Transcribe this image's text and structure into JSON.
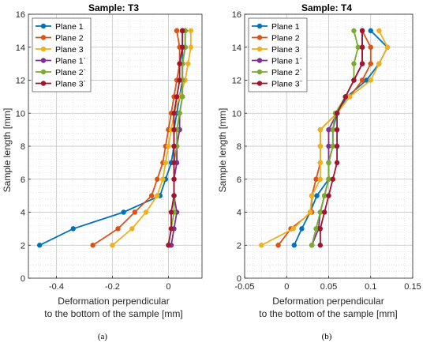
{
  "chart_data": [
    {
      "type": "line",
      "panel_label": "(a)",
      "title": "Sample: T3",
      "xlabel": "Deformation perpendicular",
      "xlabel2": "to the bottom of the sample [mm]",
      "ylabel": "Sample length [mm]",
      "xlim": [
        -0.5,
        0.12
      ],
      "ylim": [
        0,
        16
      ],
      "xticks": [
        -0.4,
        -0.2,
        0
      ],
      "xtick_labels": [
        "-0.4",
        "-0.2",
        "0"
      ],
      "yticks": [
        0,
        2,
        4,
        6,
        8,
        10,
        12,
        14,
        16
      ],
      "grid": true,
      "legend_position": "top-left",
      "series": [
        {
          "name": "Plane 1",
          "color": "#0072BD",
          "x": [
            -0.46,
            -0.34,
            -0.16,
            -0.03,
            -0.01,
            0.01,
            0.02,
            0.02,
            0.03,
            0.04,
            0.05,
            0.05,
            0.05,
            0.05,
            0.05
          ],
          "y": [
            2,
            3,
            4,
            5,
            6,
            7,
            8,
            9,
            10,
            11,
            12,
            13,
            14,
            15,
            15
          ]
        },
        {
          "name": "Plane 2",
          "color": "#D95319",
          "x": [
            -0.27,
            -0.18,
            -0.12,
            -0.06,
            -0.04,
            -0.02,
            -0.01,
            0.0,
            0.01,
            0.02,
            0.03,
            0.04,
            0.04,
            0.03,
            0.03
          ],
          "y": [
            2,
            3,
            4,
            5,
            6,
            7,
            8,
            9,
            10,
            11,
            12,
            13,
            14,
            15,
            15
          ]
        },
        {
          "name": "Plane 3",
          "color": "#EDB120",
          "x": [
            -0.2,
            -0.13,
            -0.08,
            -0.04,
            -0.02,
            -0.01,
            0.0,
            0.01,
            0.02,
            0.04,
            0.06,
            0.07,
            0.08,
            0.08,
            0.06
          ],
          "y": [
            2,
            3,
            4,
            5,
            6,
            7,
            8,
            9,
            10,
            11,
            12,
            13,
            14,
            15,
            15
          ]
        },
        {
          "name": "Plane 1`",
          "color": "#7E2F8E",
          "x": [
            0.01,
            0.02,
            0.03,
            0.02,
            0.02,
            0.03,
            0.03,
            0.04,
            0.04,
            0.05,
            0.05,
            0.05,
            0.06,
            0.06,
            0.05
          ],
          "y": [
            2,
            3,
            4,
            5,
            6,
            7,
            8,
            9,
            10,
            11,
            12,
            13,
            14,
            15,
            15
          ]
        },
        {
          "name": "Plane 2`",
          "color": "#77AC30",
          "x": [
            0.0,
            0.01,
            0.02,
            0.02,
            0.02,
            0.02,
            0.03,
            0.03,
            0.04,
            0.05,
            0.05,
            0.05,
            0.06,
            0.06,
            0.05
          ],
          "y": [
            2,
            3,
            4,
            5,
            6,
            7,
            8,
            9,
            10,
            11,
            12,
            13,
            14,
            15,
            15
          ]
        },
        {
          "name": "Plane 3`",
          "color": "#A2142F",
          "x": [
            0.0,
            0.01,
            0.01,
            0.02,
            0.02,
            0.02,
            0.02,
            0.02,
            0.02,
            0.03,
            0.04,
            0.04,
            0.05,
            0.05,
            0.05
          ],
          "y": [
            2,
            3,
            4,
            5,
            6,
            7,
            8,
            9,
            10,
            11,
            12,
            13,
            14,
            15,
            15
          ]
        }
      ]
    },
    {
      "type": "line",
      "panel_label": "(b)",
      "title": "Sample: T4",
      "xlabel": "Deformation perpendicular",
      "xlabel2": "to the bottom of the sample [mm]",
      "ylabel": "Sample length [mm]",
      "xlim": [
        -0.05,
        0.15
      ],
      "ylim": [
        0,
        16
      ],
      "xticks": [
        -0.05,
        0,
        0.05,
        0.1,
        0.15
      ],
      "xtick_labels": [
        "-0.05",
        "0",
        "0.05",
        "0.1",
        "0.15"
      ],
      "yticks": [
        0,
        2,
        4,
        6,
        8,
        10,
        12,
        14,
        16
      ],
      "grid": true,
      "legend_position": "top-left",
      "series": [
        {
          "name": "Plane 1",
          "color": "#0072BD",
          "x": [
            0.009,
            0.018,
            0.028,
            0.036,
            0.05,
            0.05,
            0.055,
            0.055,
            0.06,
            0.072,
            0.095,
            0.11,
            0.12,
            0.1
          ],
          "y": [
            2,
            3,
            4,
            5,
            6,
            7,
            8,
            9,
            10,
            11,
            12,
            13,
            14,
            15
          ]
        },
        {
          "name": "Plane 2",
          "color": "#D95319",
          "x": [
            -0.01,
            0.005,
            0.03,
            0.03,
            0.035,
            0.04,
            0.04,
            0.04,
            0.06,
            0.075,
            0.09,
            0.1,
            0.1,
            0.09
          ],
          "y": [
            2,
            3,
            4,
            5,
            6,
            7,
            8,
            9,
            10,
            11,
            12,
            13,
            14,
            15
          ]
        },
        {
          "name": "Plane 3",
          "color": "#EDB120",
          "x": [
            -0.03,
            0.008,
            0.028,
            0.03,
            0.04,
            0.04,
            0.04,
            0.04,
            0.06,
            0.075,
            0.1,
            0.11,
            0.12,
            0.11
          ],
          "y": [
            2,
            3,
            4,
            5,
            6,
            7,
            8,
            9,
            10,
            11,
            12,
            13,
            14,
            15
          ]
        },
        {
          "name": "Plane 1`",
          "color": "#7E2F8E",
          "x": [
            0.03,
            0.038,
            0.04,
            0.045,
            0.05,
            0.05,
            0.05,
            0.05,
            0.06,
            0.07,
            0.08,
            0.09,
            0.09,
            0.09
          ],
          "y": [
            2,
            3,
            4,
            5,
            6,
            7,
            8,
            9,
            10,
            11,
            12,
            13,
            14,
            15
          ]
        },
        {
          "name": "Plane 2`",
          "color": "#77AC30",
          "x": [
            0.03,
            0.035,
            0.04,
            0.045,
            0.05,
            0.05,
            0.055,
            0.055,
            0.058,
            0.07,
            0.08,
            0.08,
            0.085,
            0.08
          ],
          "y": [
            2,
            3,
            4,
            5,
            6,
            7,
            8,
            9,
            10,
            11,
            12,
            13,
            14,
            15
          ]
        },
        {
          "name": "Plane 3`",
          "color": "#A2142F",
          "x": [
            0.04,
            0.04,
            0.045,
            0.05,
            0.055,
            0.06,
            0.06,
            0.06,
            0.06,
            0.07,
            0.08,
            0.09,
            0.09,
            0.09
          ],
          "y": [
            2,
            3,
            4,
            5,
            6,
            7,
            8,
            9,
            10,
            11,
            12,
            13,
            14,
            15
          ]
        }
      ]
    }
  ]
}
